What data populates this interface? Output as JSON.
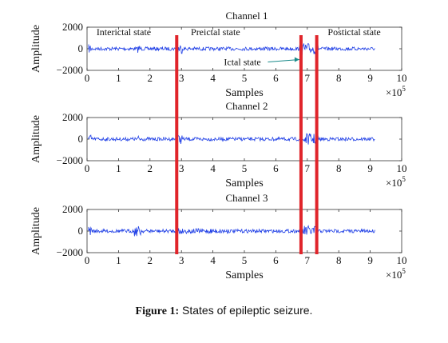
{
  "chart_data": [
    {
      "type": "line",
      "title": "Channel 1",
      "ylabel": "Amplitude",
      "xlabel": "Samples",
      "x_multiplier": "×10",
      "x_exponent": "5",
      "xlim": [
        0,
        10
      ],
      "ylim": [
        -2000,
        2000
      ],
      "xticks": [
        "0",
        "1",
        "2",
        "3",
        "4",
        "5",
        "6",
        "7",
        "8",
        "9",
        "10"
      ],
      "yticks": [
        "2000",
        "0",
        "−2000"
      ],
      "series": [
        {
          "color": "#1f3fe6",
          "x_end": 9.15,
          "baseline": 0
        }
      ],
      "annotations": [
        {
          "text": "Interictal state",
          "x": 0.3,
          "y": 1500
        },
        {
          "text": "Preictal state",
          "x": 3.3,
          "y": 1500
        },
        {
          "text": "Ictal state",
          "x": 4.35,
          "y": -1300,
          "arrow_to_x": 6.8,
          "arrow_to_y": -1000
        },
        {
          "text": "Postictal state",
          "x": 7.65,
          "y": 1500
        }
      ]
    },
    {
      "type": "line",
      "title": "Channel 2",
      "ylabel": "Amplitude",
      "xlabel": "Samples",
      "x_multiplier": "×10",
      "x_exponent": "5",
      "xlim": [
        0,
        10
      ],
      "ylim": [
        -2000,
        2000
      ],
      "xticks": [
        "0",
        "1",
        "2",
        "3",
        "4",
        "5",
        "6",
        "7",
        "8",
        "9",
        "10"
      ],
      "yticks": [
        "2000",
        "0",
        "−2000"
      ],
      "series": [
        {
          "color": "#1f3fe6",
          "x_end": 9.15,
          "baseline": 0
        }
      ]
    },
    {
      "type": "line",
      "title": "Channel 3",
      "ylabel": "Amplitude",
      "xlabel": "Samples",
      "x_multiplier": "×10",
      "x_exponent": "5",
      "xlim": [
        0,
        10
      ],
      "ylim": [
        -2000,
        2000
      ],
      "xticks": [
        "0",
        "1",
        "2",
        "3",
        "4",
        "5",
        "6",
        "7",
        "8",
        "9",
        "10"
      ],
      "yticks": [
        "2000",
        "0",
        "−2000"
      ],
      "series": [
        {
          "color": "#1f3fe6",
          "x_end": 9.15,
          "baseline": 0
        }
      ]
    }
  ],
  "state_boundaries": {
    "x": [
      2.85,
      6.8,
      7.3
    ],
    "color": "#e0242a"
  },
  "caption": {
    "label": "Figure 1:",
    "text": " States of epileptic seizure."
  }
}
